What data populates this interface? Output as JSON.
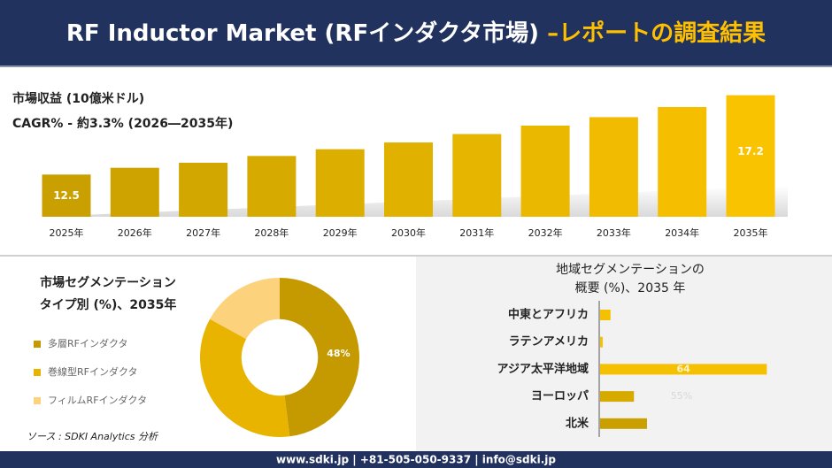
{
  "header": {
    "title": "RF Inductor Market (RFインダクタ市場) ",
    "title_highlight": "–レポートの調査結果"
  },
  "chart_data": [
    {
      "type": "bar",
      "title": "市場収益 (10億米ドル)",
      "subtitle": "CAGR% - 約3.3% (2026―2035年)",
      "categories": [
        "2025年",
        "2026年",
        "2027年",
        "2028年",
        "2029年",
        "2030年",
        "2031年",
        "2032年",
        "2033年",
        "2034年",
        "2035年"
      ],
      "values": [
        12.5,
        12.9,
        13.2,
        13.6,
        14.0,
        14.4,
        14.9,
        15.4,
        15.9,
        16.5,
        17.2
      ],
      "value_labels": [
        "12.5",
        null,
        null,
        null,
        null,
        null,
        null,
        null,
        null,
        null,
        "17.2"
      ],
      "colors": [
        "#c9a000",
        "#cea300",
        "#d2a700",
        "#d7aa00",
        "#dcae00",
        "#e1b100",
        "#e6b500",
        "#ebb800",
        "#f0bb00",
        "#f5bf00",
        "#fac300"
      ],
      "ylim": [
        10,
        17.6
      ]
    },
    {
      "type": "pie",
      "title_lines": [
        "市場セグメンテーション",
        "タイプ別 (%)、2035年"
      ],
      "categories": [
        "多層RFインダクタ",
        "巻線型RFインダクタ",
        "フィルムRFインダクタ"
      ],
      "values": [
        48,
        35,
        17
      ],
      "value_labels": [
        "48%",
        null,
        null
      ],
      "colors": [
        "#c49a00",
        "#e8b400",
        "#fcd27c"
      ],
      "hole": 0.48
    },
    {
      "type": "bar",
      "orientation": "horizontal",
      "title_lines": [
        "地域セグメンテーションの",
        "概要 (%)、2035 年"
      ],
      "categories": [
        "中東とアフリカ",
        "ラテンアメリカ",
        "アジア太平洋地域",
        "ヨーロッパ",
        "北米"
      ],
      "values": [
        4,
        1,
        64,
        13,
        18
      ],
      "value_labels": [
        null,
        null,
        "64",
        null,
        null
      ],
      "colors": [
        "#f5c000",
        "#f5c000",
        "#f5c000",
        "#d7aa00",
        "#c9a000"
      ],
      "xlim": [
        0,
        70
      ],
      "annotation": "55%"
    }
  ],
  "source": "ソース : SDKI Analytics 分析",
  "footer": "www.sdki.jp | +81-505-050-9337 | info@sdki.jp"
}
